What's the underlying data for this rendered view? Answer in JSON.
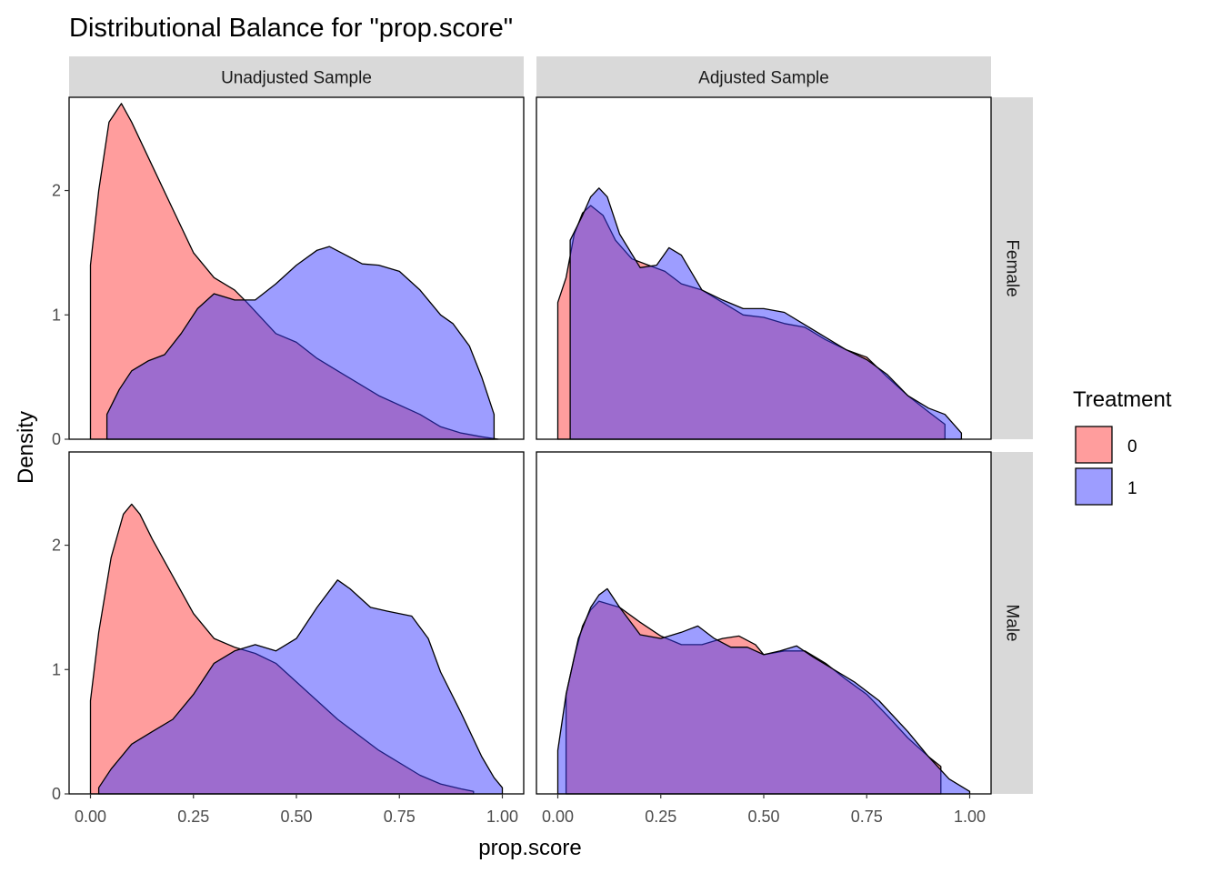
{
  "chart_data": {
    "type": "area",
    "title": "Distributional Balance for \"prop.score\"",
    "xlabel": "prop.score",
    "ylabel": "Density",
    "xlim": [
      0,
      1
    ],
    "ylim": [
      0,
      2.75
    ],
    "x_ticks": [
      0,
      0.25,
      0.5,
      0.75,
      1
    ],
    "x_tick_labels": [
      "0.00",
      "0.25",
      "0.50",
      "0.75",
      "1.00"
    ],
    "y_ticks": [
      0,
      1,
      2
    ],
    "y_tick_labels": [
      "0",
      "1",
      "2"
    ],
    "grid": false,
    "legend": {
      "title": "Treatment",
      "position": "right",
      "entries": [
        {
          "label": "0",
          "color": "#ff3b3b"
        },
        {
          "label": "1",
          "color": "#3b3bff"
        }
      ]
    },
    "fill_opacity": 0.5,
    "column_strips": [
      "Unadjusted Sample",
      "Adjusted Sample"
    ],
    "row_strips": [
      "Female",
      "Male"
    ],
    "panels": [
      {
        "column": "Unadjusted Sample",
        "row": "Female",
        "series": [
          {
            "treatment": "0",
            "points": [
              [
                0.0,
                0
              ],
              [
                0.0,
                1.4
              ],
              [
                0.02,
                2.0
              ],
              [
                0.045,
                2.55
              ],
              [
                0.075,
                2.7
              ],
              [
                0.1,
                2.55
              ],
              [
                0.15,
                2.2
              ],
              [
                0.2,
                1.85
              ],
              [
                0.25,
                1.5
              ],
              [
                0.3,
                1.3
              ],
              [
                0.35,
                1.2
              ],
              [
                0.38,
                1.1
              ],
              [
                0.45,
                0.85
              ],
              [
                0.5,
                0.78
              ],
              [
                0.55,
                0.65
              ],
              [
                0.6,
                0.55
              ],
              [
                0.7,
                0.35
              ],
              [
                0.8,
                0.2
              ],
              [
                0.85,
                0.1
              ],
              [
                0.9,
                0.05
              ],
              [
                0.95,
                0.02
              ],
              [
                0.99,
                0.0
              ]
            ]
          },
          {
            "treatment": "1",
            "points": [
              [
                0.04,
                0
              ],
              [
                0.04,
                0.2
              ],
              [
                0.07,
                0.4
              ],
              [
                0.1,
                0.55
              ],
              [
                0.14,
                0.63
              ],
              [
                0.18,
                0.68
              ],
              [
                0.22,
                0.85
              ],
              [
                0.26,
                1.05
              ],
              [
                0.3,
                1.17
              ],
              [
                0.35,
                1.12
              ],
              [
                0.4,
                1.12
              ],
              [
                0.45,
                1.25
              ],
              [
                0.5,
                1.4
              ],
              [
                0.55,
                1.52
              ],
              [
                0.58,
                1.55
              ],
              [
                0.62,
                1.48
              ],
              [
                0.66,
                1.41
              ],
              [
                0.7,
                1.4
              ],
              [
                0.75,
                1.35
              ],
              [
                0.8,
                1.2
              ],
              [
                0.85,
                1.0
              ],
              [
                0.88,
                0.93
              ],
              [
                0.92,
                0.75
              ],
              [
                0.95,
                0.5
              ],
              [
                0.98,
                0.2
              ],
              [
                0.98,
                0
              ]
            ]
          }
        ]
      },
      {
        "column": "Adjusted Sample",
        "row": "Female",
        "series": [
          {
            "treatment": "0",
            "points": [
              [
                0.0,
                0
              ],
              [
                0.0,
                1.1
              ],
              [
                0.02,
                1.3
              ],
              [
                0.04,
                1.65
              ],
              [
                0.06,
                1.82
              ],
              [
                0.08,
                1.88
              ],
              [
                0.11,
                1.8
              ],
              [
                0.14,
                1.6
              ],
              [
                0.18,
                1.45
              ],
              [
                0.22,
                1.4
              ],
              [
                0.26,
                1.35
              ],
              [
                0.3,
                1.25
              ],
              [
                0.35,
                1.2
              ],
              [
                0.4,
                1.1
              ],
              [
                0.45,
                1.0
              ],
              [
                0.5,
                0.98
              ],
              [
                0.55,
                0.93
              ],
              [
                0.6,
                0.9
              ],
              [
                0.65,
                0.8
              ],
              [
                0.7,
                0.72
              ],
              [
                0.75,
                0.66
              ],
              [
                0.8,
                0.5
              ],
              [
                0.85,
                0.35
              ],
              [
                0.9,
                0.22
              ],
              [
                0.94,
                0.12
              ],
              [
                0.94,
                0
              ]
            ]
          },
          {
            "treatment": "1",
            "points": [
              [
                0.03,
                0
              ],
              [
                0.03,
                1.6
              ],
              [
                0.06,
                1.8
              ],
              [
                0.08,
                1.95
              ],
              [
                0.1,
                2.02
              ],
              [
                0.12,
                1.95
              ],
              [
                0.15,
                1.65
              ],
              [
                0.2,
                1.38
              ],
              [
                0.24,
                1.4
              ],
              [
                0.27,
                1.54
              ],
              [
                0.3,
                1.48
              ],
              [
                0.35,
                1.2
              ],
              [
                0.4,
                1.12
              ],
              [
                0.45,
                1.05
              ],
              [
                0.5,
                1.05
              ],
              [
                0.55,
                1.02
              ],
              [
                0.6,
                0.92
              ],
              [
                0.65,
                0.82
              ],
              [
                0.7,
                0.72
              ],
              [
                0.75,
                0.64
              ],
              [
                0.8,
                0.52
              ],
              [
                0.85,
                0.35
              ],
              [
                0.9,
                0.25
              ],
              [
                0.94,
                0.2
              ],
              [
                0.98,
                0.05
              ],
              [
                0.98,
                0
              ]
            ]
          }
        ]
      },
      {
        "column": "Unadjusted Sample",
        "row": "Male",
        "series": [
          {
            "treatment": "0",
            "points": [
              [
                0.0,
                0
              ],
              [
                0.0,
                0.75
              ],
              [
                0.02,
                1.3
              ],
              [
                0.05,
                1.9
              ],
              [
                0.08,
                2.25
              ],
              [
                0.1,
                2.33
              ],
              [
                0.12,
                2.25
              ],
              [
                0.15,
                2.05
              ],
              [
                0.2,
                1.75
              ],
              [
                0.25,
                1.45
              ],
              [
                0.3,
                1.25
              ],
              [
                0.35,
                1.18
              ],
              [
                0.4,
                1.13
              ],
              [
                0.45,
                1.05
              ],
              [
                0.5,
                0.9
              ],
              [
                0.55,
                0.75
              ],
              [
                0.6,
                0.6
              ],
              [
                0.7,
                0.35
              ],
              [
                0.8,
                0.15
              ],
              [
                0.85,
                0.08
              ],
              [
                0.9,
                0.04
              ],
              [
                0.93,
                0.02
              ],
              [
                0.93,
                0
              ]
            ]
          },
          {
            "treatment": "1",
            "points": [
              [
                0.02,
                0
              ],
              [
                0.02,
                0.05
              ],
              [
                0.05,
                0.2
              ],
              [
                0.1,
                0.4
              ],
              [
                0.15,
                0.5
              ],
              [
                0.2,
                0.6
              ],
              [
                0.25,
                0.8
              ],
              [
                0.3,
                1.05
              ],
              [
                0.35,
                1.15
              ],
              [
                0.4,
                1.2
              ],
              [
                0.45,
                1.15
              ],
              [
                0.5,
                1.25
              ],
              [
                0.55,
                1.5
              ],
              [
                0.6,
                1.72
              ],
              [
                0.63,
                1.65
              ],
              [
                0.68,
                1.5
              ],
              [
                0.72,
                1.47
              ],
              [
                0.78,
                1.43
              ],
              [
                0.82,
                1.25
              ],
              [
                0.85,
                0.98
              ],
              [
                0.9,
                0.65
              ],
              [
                0.95,
                0.3
              ],
              [
                0.98,
                0.13
              ],
              [
                1.0,
                0.05
              ],
              [
                1.0,
                0
              ]
            ]
          }
        ]
      },
      {
        "column": "Adjusted Sample",
        "row": "Male",
        "series": [
          {
            "treatment": "0",
            "points": [
              [
                0.02,
                0
              ],
              [
                0.02,
                0.8
              ],
              [
                0.04,
                1.1
              ],
              [
                0.06,
                1.35
              ],
              [
                0.08,
                1.48
              ],
              [
                0.1,
                1.55
              ],
              [
                0.15,
                1.5
              ],
              [
                0.2,
                1.38
              ],
              [
                0.25,
                1.27
              ],
              [
                0.3,
                1.2
              ],
              [
                0.35,
                1.2
              ],
              [
                0.4,
                1.25
              ],
              [
                0.44,
                1.27
              ],
              [
                0.48,
                1.2
              ],
              [
                0.5,
                1.12
              ],
              [
                0.55,
                1.15
              ],
              [
                0.6,
                1.15
              ],
              [
                0.65,
                1.05
              ],
              [
                0.7,
                0.92
              ],
              [
                0.75,
                0.8
              ],
              [
                0.8,
                0.63
              ],
              [
                0.85,
                0.45
              ],
              [
                0.9,
                0.3
              ],
              [
                0.93,
                0.22
              ],
              [
                0.93,
                0
              ]
            ]
          },
          {
            "treatment": "1",
            "points": [
              [
                0.0,
                0
              ],
              [
                0.0,
                0.35
              ],
              [
                0.02,
                0.8
              ],
              [
                0.05,
                1.25
              ],
              [
                0.08,
                1.5
              ],
              [
                0.1,
                1.6
              ],
              [
                0.12,
                1.65
              ],
              [
                0.15,
                1.5
              ],
              [
                0.2,
                1.28
              ],
              [
                0.25,
                1.25
              ],
              [
                0.3,
                1.3
              ],
              [
                0.34,
                1.35
              ],
              [
                0.38,
                1.25
              ],
              [
                0.42,
                1.18
              ],
              [
                0.46,
                1.18
              ],
              [
                0.5,
                1.12
              ],
              [
                0.54,
                1.15
              ],
              [
                0.58,
                1.19
              ],
              [
                0.62,
                1.1
              ],
              [
                0.66,
                1.02
              ],
              [
                0.72,
                0.9
              ],
              [
                0.78,
                0.75
              ],
              [
                0.85,
                0.5
              ],
              [
                0.9,
                0.3
              ],
              [
                0.95,
                0.12
              ],
              [
                1.0,
                0.02
              ],
              [
                1.0,
                0
              ]
            ]
          }
        ]
      }
    ]
  }
}
